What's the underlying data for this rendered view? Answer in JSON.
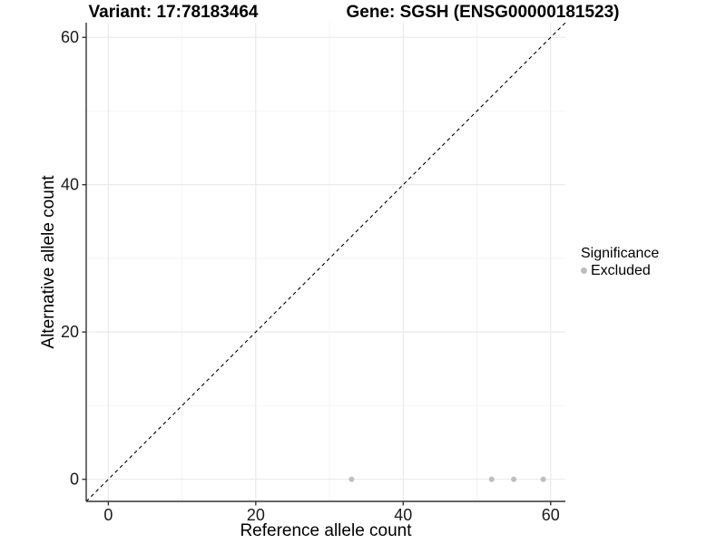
{
  "header": {
    "variant_title": "Variant: 17:78183464",
    "gene_title": "Gene: SGSH (ENSG00000181523)"
  },
  "chart_data": {
    "type": "scatter",
    "title": "Variant: 17:78183464   Gene: SGSH (ENSG00000181523)",
    "xlabel": "Reference allele count",
    "ylabel": "Alternative allele count",
    "xlim": [
      -3,
      62
    ],
    "ylim": [
      -3,
      62
    ],
    "x_ticks": [
      0,
      20,
      40,
      60
    ],
    "y_ticks": [
      0,
      20,
      40,
      60
    ],
    "x_minor_ticks": [
      10,
      30,
      50
    ],
    "y_minor_ticks": [
      10,
      30,
      50
    ],
    "grid": true,
    "legend_position": "right",
    "series": [
      {
        "name": "Excluded",
        "color": "#bebebe",
        "points": [
          [
            33,
            0
          ],
          [
            52,
            0
          ],
          [
            55,
            0
          ],
          [
            59,
            0
          ]
        ]
      }
    ],
    "reference_line": {
      "kind": "identity y=x",
      "style": "dashed",
      "color": "#000000"
    },
    "legend": {
      "title": "Significance",
      "items": [
        {
          "label": "Excluded",
          "color": "#bebebe"
        }
      ]
    }
  },
  "colors": {
    "background": "#ffffff",
    "point": "#bebebe",
    "grid_major": "#e8e8e8",
    "grid_minor": "#f2f2f2",
    "axis_line": "#333333",
    "text": "#000000",
    "tick_text": "#1a1a1a"
  }
}
